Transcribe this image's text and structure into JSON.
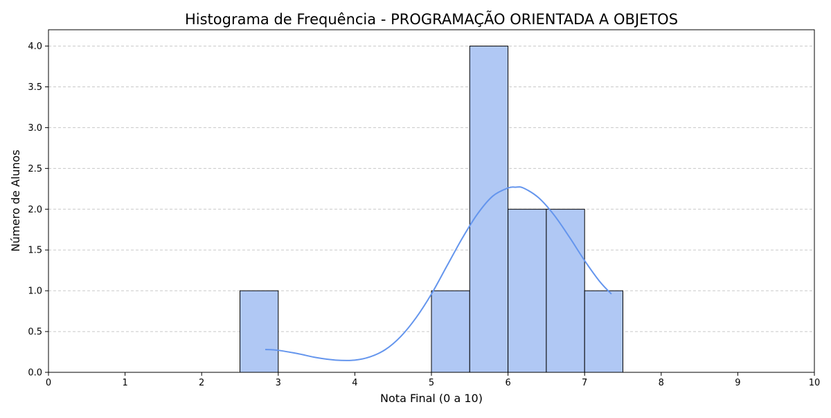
{
  "chart_data": {
    "type": "bar",
    "subtype": "histogram-with-kde",
    "title": "Histograma de Frequência - PROGRAMAÇÃO ORIENTADA A OBJETOS",
    "xlabel": "Nota Final (0 a 10)",
    "ylabel": "Número de Alunos",
    "xlim": [
      0,
      10
    ],
    "ylim": [
      0,
      4.2
    ],
    "x_ticks": [
      0,
      1,
      2,
      3,
      4,
      5,
      6,
      7,
      8,
      9,
      10
    ],
    "x_tick_labels": [
      "0",
      "1",
      "2",
      "3",
      "4",
      "5",
      "6",
      "7",
      "8",
      "9",
      "10"
    ],
    "y_ticks": [
      0,
      0.5,
      1,
      1.5,
      2,
      2.5,
      3,
      3.5,
      4
    ],
    "y_tick_labels": [
      "0.0",
      "0.5",
      "1.0",
      "1.5",
      "2.0",
      "2.5",
      "3.0",
      "3.5",
      "4.0"
    ],
    "grid": "y-axis dashed",
    "bins": [
      {
        "start": 2.5,
        "end": 3.0,
        "count": 1
      },
      {
        "start": 3.0,
        "end": 3.5,
        "count": 0
      },
      {
        "start": 3.5,
        "end": 4.0,
        "count": 0
      },
      {
        "start": 4.0,
        "end": 4.5,
        "count": 0
      },
      {
        "start": 4.5,
        "end": 5.0,
        "count": 0
      },
      {
        "start": 5.0,
        "end": 5.5,
        "count": 1
      },
      {
        "start": 5.5,
        "end": 6.0,
        "count": 4
      },
      {
        "start": 6.0,
        "end": 6.5,
        "count": 2
      },
      {
        "start": 6.5,
        "end": 7.0,
        "count": 2
      },
      {
        "start": 7.0,
        "end": 7.5,
        "count": 1
      }
    ],
    "kde": {
      "x": [
        2.83,
        3.0,
        3.25,
        3.5,
        3.75,
        4.0,
        4.2,
        4.4,
        4.6,
        4.8,
        5.0,
        5.2,
        5.4,
        5.6,
        5.8,
        6.0,
        6.1,
        6.2,
        6.4,
        6.6,
        6.8,
        7.0,
        7.2,
        7.35
      ],
      "y": [
        0.28,
        0.27,
        0.23,
        0.18,
        0.15,
        0.15,
        0.19,
        0.28,
        0.44,
        0.67,
        0.96,
        1.3,
        1.64,
        1.94,
        2.16,
        2.26,
        2.27,
        2.26,
        2.14,
        1.93,
        1.66,
        1.37,
        1.11,
        0.96
      ]
    },
    "colors": {
      "bar_fill": "#b0c8f4",
      "bar_edge": "#000000",
      "kde_line": "#6495ed",
      "grid": "#c8c8c8"
    }
  }
}
